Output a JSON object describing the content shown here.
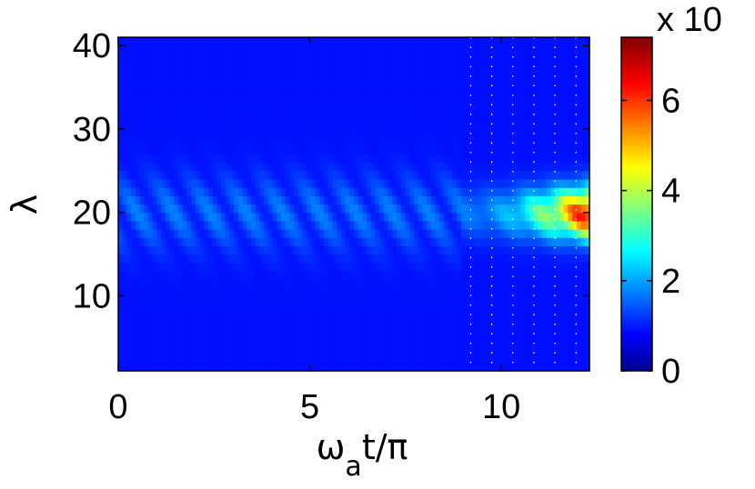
{
  "chart_data": {
    "type": "heatmap",
    "xlabel": "ωat/π",
    "xlabel_parts": {
      "main_left": "ω",
      "subscript": "a",
      "main_right": "t/π"
    },
    "ylabel": "λ",
    "x_range": [
      0,
      12.3
    ],
    "y_range": [
      1,
      41
    ],
    "x_ticks": [
      0,
      5,
      10
    ],
    "y_ticks": [
      10,
      20,
      30,
      40
    ],
    "colormap": "jet",
    "colorbar": {
      "range": [
        0,
        7.4
      ],
      "ticks": [
        0,
        2,
        4,
        6
      ],
      "multiplier_label": "x 10"
    },
    "ridge_center_lambda": 20,
    "ridge_halfwidth_lambda": 4.5,
    "oscillation_period_xaxis": 0.95,
    "dotted_gridlines_x": [
      9.2,
      9.75,
      10.3,
      10.85,
      11.4,
      11.95
    ],
    "peak": {
      "x": 12.1,
      "lambda": 20,
      "value": 7.4
    },
    "notable_values": [
      {
        "x": 0.5,
        "lambda": 20,
        "value": 0.9
      },
      {
        "x": 5.0,
        "lambda": 20,
        "value": 1.0
      },
      {
        "x": 9.5,
        "lambda": 20,
        "value": 1.3
      },
      {
        "x": 10.5,
        "lambda": 20,
        "value": 2.5
      },
      {
        "x": 11.3,
        "lambda": 20,
        "value": 4.5
      },
      {
        "x": 12.1,
        "lambda": 20,
        "value": 7.4
      }
    ],
    "grid": false
  }
}
